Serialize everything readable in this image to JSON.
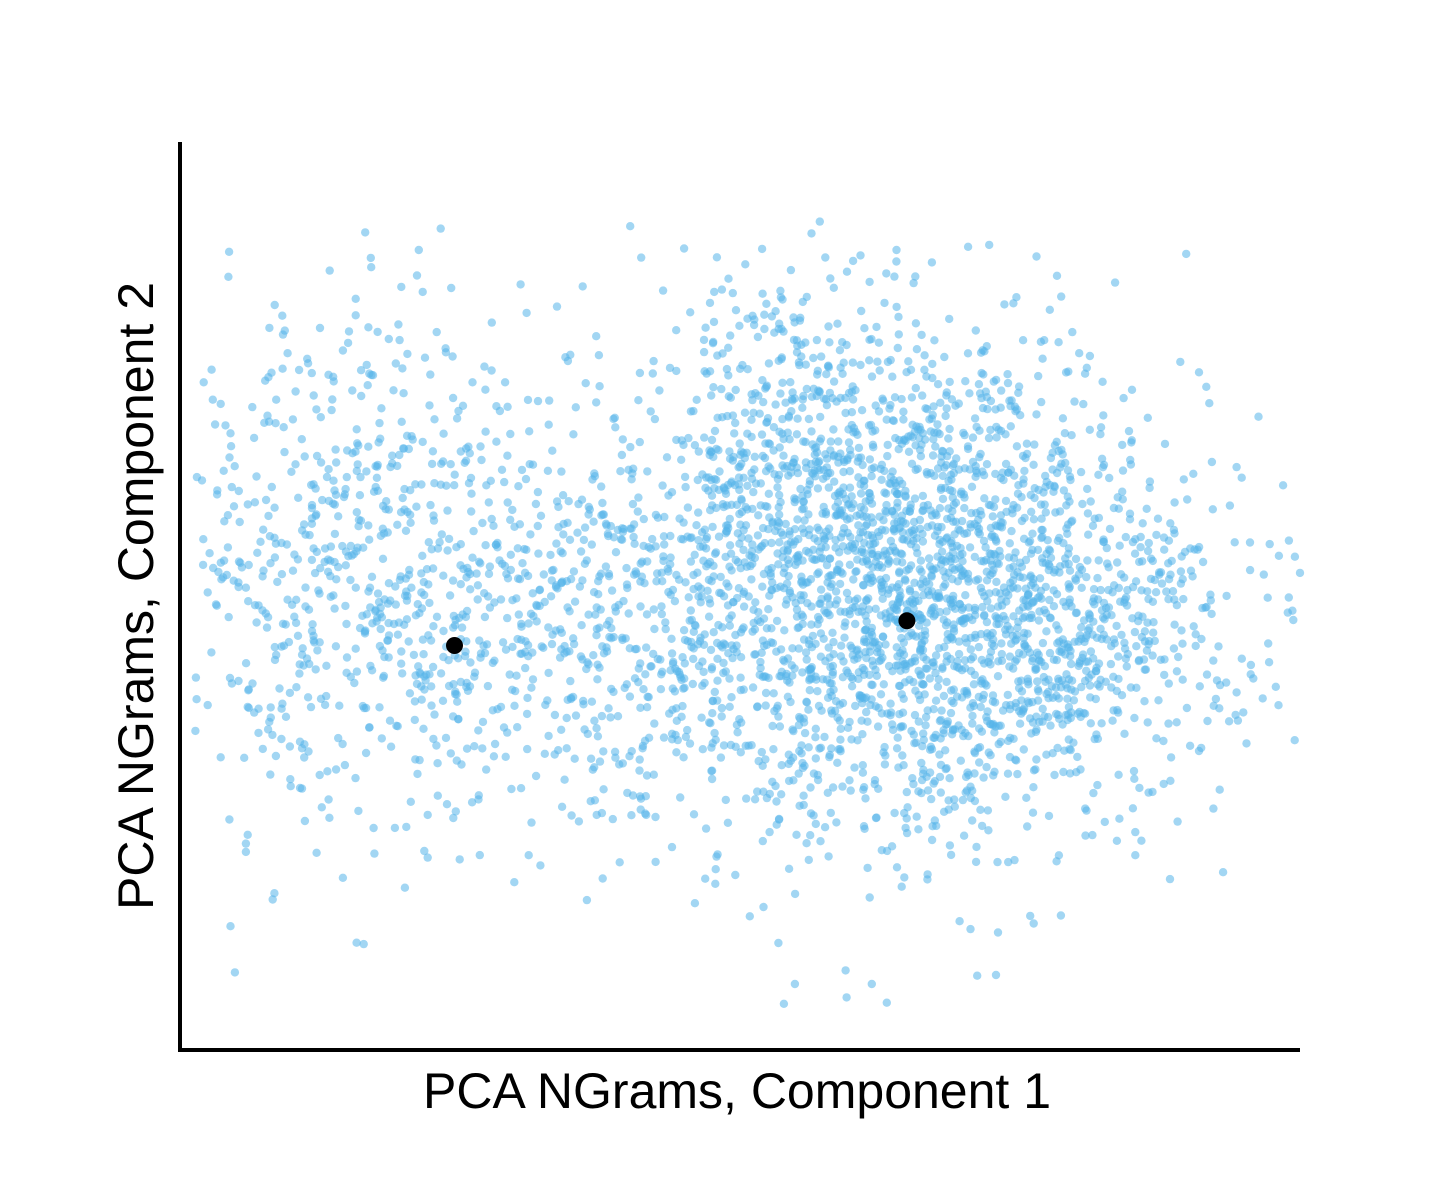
{
  "chart_data": {
    "type": "scatter",
    "title": "",
    "xlabel": "PCA NGrams, Component 1",
    "ylabel": "PCA NGrams,  Component 2",
    "xlim": [
      -2.05,
      3.05
    ],
    "ylim": [
      -2.5,
      3.0
    ],
    "grid": false,
    "legend": "none",
    "x_ticks": [],
    "y_ticks": [],
    "colors": {
      "points": "#56b4e9",
      "centroids": "#000000",
      "axes": "#000000"
    },
    "clusters": [
      {
        "center": [
          1.3,
          0.25
        ],
        "sx": 0.65,
        "sy": 0.75,
        "count": 2400
      },
      {
        "center": [
          -0.3,
          0.2
        ],
        "sx": 0.55,
        "sy": 0.7,
        "count": 600
      },
      {
        "center": [
          -1.3,
          0.5
        ],
        "sx": 0.4,
        "sy": 0.75,
        "count": 500
      },
      {
        "center": [
          0.7,
          1.35
        ],
        "sx": 0.3,
        "sy": 0.55,
        "count": 250
      },
      {
        "center": [
          2.2,
          0.05
        ],
        "sx": 0.4,
        "sy": 0.3,
        "count": 150
      }
    ],
    "series": [
      {
        "marker": "centroid",
        "x": [
          -0.8,
          1.26
        ],
        "y": [
          -0.05,
          0.1
        ]
      }
    ],
    "sample_points": {
      "x": [
        0.0,
        0.05,
        0.15,
        -1.25,
        -1.25,
        -1.15,
        -1.05,
        -1.45,
        -1.35,
        -1.2,
        -1.95,
        -1.75,
        3.05,
        2.88,
        2.94,
        2.6,
        2.3,
        2.3,
        0.7,
        0.75,
        1.1,
        1.75,
        1.5,
        1.85,
        1.58,
        -1.8,
        -1.82,
        -1.75,
        -1.62,
        -1.75,
        0.62,
        0.85,
        0.98,
        1.38,
        1.6,
        1.85
      ],
      "y": [
        2.49,
        2.3,
        2.1,
        2.05,
        1.95,
        1.85,
        1.8,
        1.6,
        1.55,
        1.65,
        0.95,
        0.3,
        0.39,
        -0.37,
        -0.3,
        -0.67,
        -1.18,
        -1.32,
        -2.22,
        -2.1,
        -2.1,
        -1.35,
        -1.72,
        -0.56,
        -2.05,
        -2.03,
        -1.75,
        -1.25,
        -1.55,
        -1.3,
        2.02,
        1.8,
        1.45,
        1.2,
        1.6,
        1.35
      ]
    }
  }
}
